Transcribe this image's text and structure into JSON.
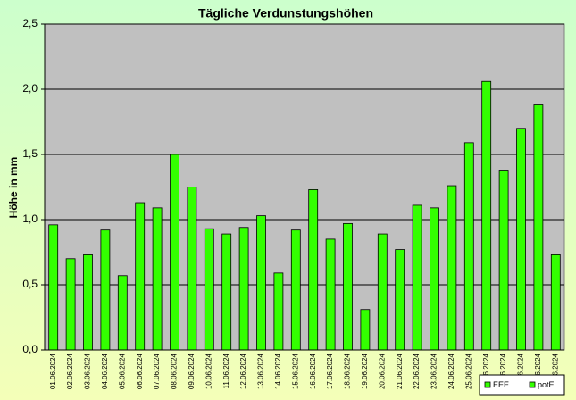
{
  "chart_data": {
    "type": "bar",
    "title": "Tägliche Verdunstungshöhen",
    "y_label": "Höhe in mm",
    "categories": [
      "01.06.2024",
      "02.06.2024",
      "03.06.2024",
      "04.06.2024",
      "05.06.2024",
      "06.06.2024",
      "07.06.2024",
      "08.06.2024",
      "09.06.2024",
      "10.06.2024",
      "11.06.2024",
      "12.06.2024",
      "13.06.2024",
      "14.06.2024",
      "15.06.2024",
      "16.06.2024",
      "17.06.2024",
      "18.06.2024",
      "19.06.2024",
      "20.06.2024",
      "21.06.2024",
      "22.06.2024",
      "23.06.2024",
      "24.06.2024",
      "25.06.2024",
      "26.06.2024",
      "27.06.2024",
      "28.06.2024",
      "29.06.2024",
      "30.06.2024"
    ],
    "series": [
      {
        "name": "EEE",
        "color": "#33ff00",
        "values": [
          null,
          null,
          null,
          null,
          null,
          null,
          null,
          null,
          null,
          null,
          null,
          null,
          null,
          null,
          null,
          null,
          null,
          null,
          null,
          null,
          null,
          null,
          null,
          null,
          null,
          null,
          null,
          null,
          null,
          null
        ]
      },
      {
        "name": "potE",
        "color": "#33ff00",
        "values": [
          0.96,
          0.7,
          0.73,
          0.92,
          0.57,
          1.13,
          1.09,
          1.5,
          1.25,
          0.93,
          0.89,
          0.94,
          1.03,
          0.59,
          0.92,
          1.23,
          0.85,
          0.97,
          0.31,
          0.89,
          0.77,
          1.11,
          1.09,
          1.26,
          1.59,
          2.06,
          1.38,
          1.7,
          1.88,
          0.73
        ]
      }
    ],
    "ylim": [
      0,
      2.5
    ],
    "yticks": [
      {
        "value": 0,
        "label": "0,0"
      },
      {
        "value": 0.5,
        "label": "0,5"
      },
      {
        "value": 1,
        "label": "1,0"
      },
      {
        "value": 1.5,
        "label": "1,5"
      },
      {
        "value": 2,
        "label": "2,0"
      },
      {
        "value": 2.5,
        "label": "2,5"
      }
    ],
    "grid": true,
    "legend": "bottom-right"
  }
}
